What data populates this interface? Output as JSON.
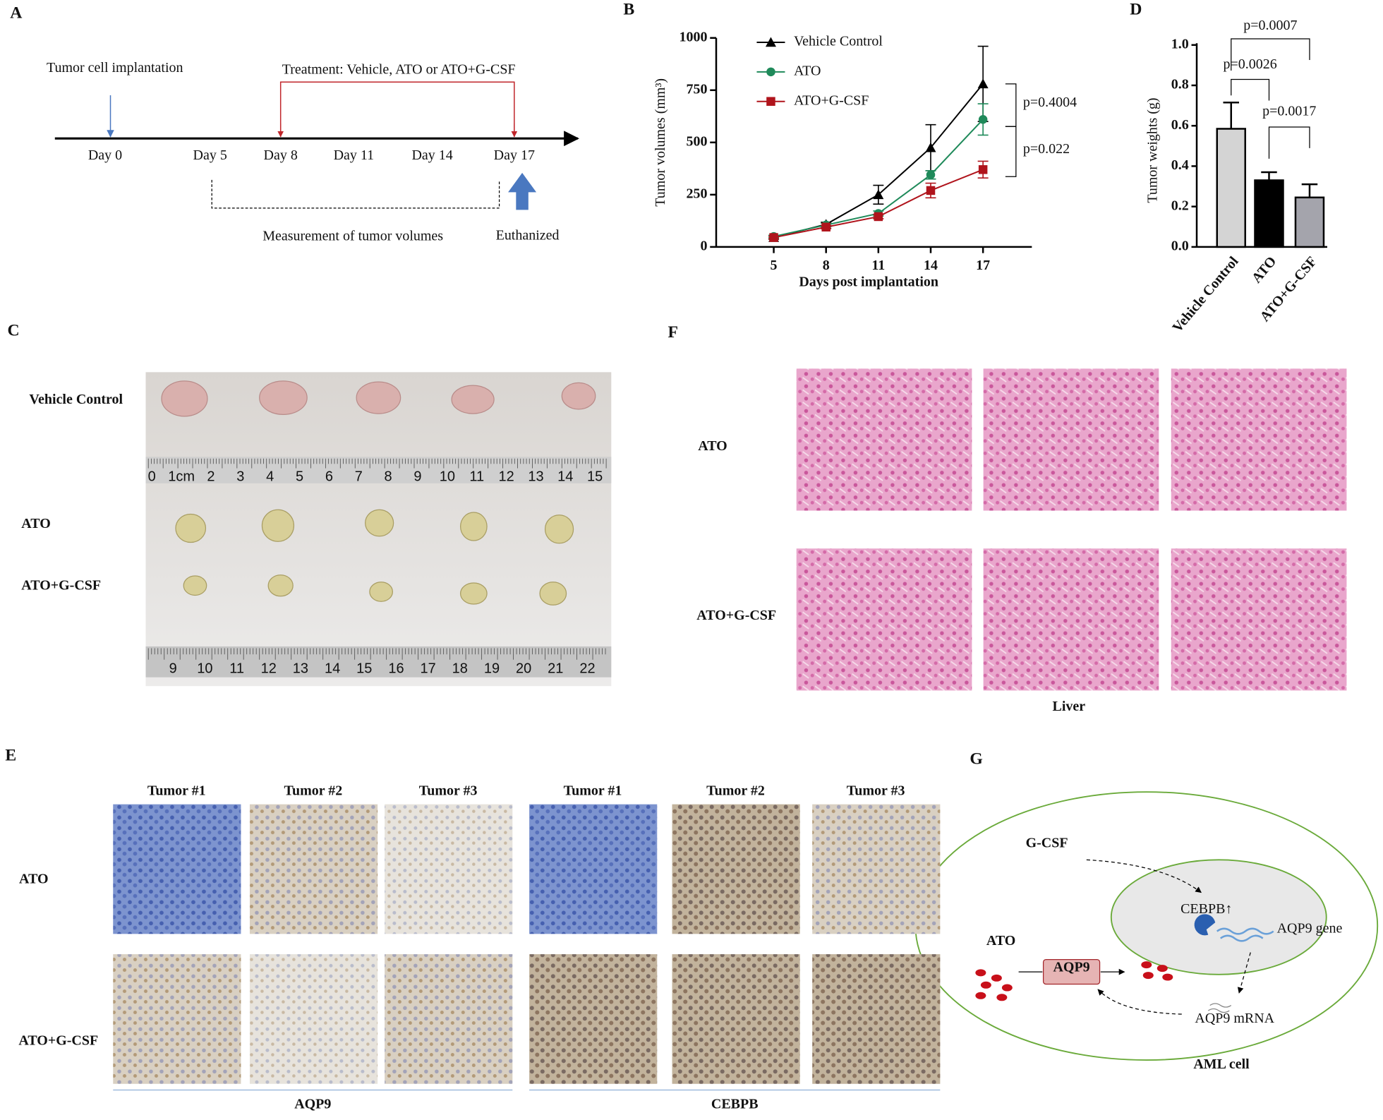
{
  "panel_labels": [
    "A",
    "B",
    "C",
    "D",
    "E",
    "F",
    "G"
  ],
  "panel_a": {
    "implantation": "Tumor cell implantation",
    "treatment": "Treatment: Vehicle, ATO or ATO+G-CSF",
    "days": [
      "Day 0",
      "Day 5",
      "Day 8",
      "Day 11",
      "Day 14",
      "Day 17"
    ],
    "measurement": "Measurement of tumor volumes",
    "euthanized": "Euthanized"
  },
  "chart_data": [
    {
      "type": "line",
      "xlabel": "Days post implantation",
      "ylabel": "Tumor volumes (mm³)",
      "x": [
        5,
        8,
        11,
        14,
        17
      ],
      "xlim": [
        1.7,
        19.8
      ],
      "xticks": [
        5,
        8,
        11,
        14,
        17
      ],
      "ylim": [
        0,
        1000
      ],
      "yticks": [
        0,
        250,
        500,
        750,
        1000
      ],
      "series": [
        {
          "name": "Vehicle Control",
          "color": "#000000",
          "marker": "triangle",
          "values": [
            45,
            108,
            250,
            475,
            780
          ],
          "errors": [
            8,
            10,
            45,
            110,
            180
          ]
        },
        {
          "name": "ATO",
          "color": "#1f8a5a",
          "marker": "circle",
          "values": [
            50,
            105,
            160,
            345,
            610
          ],
          "errors": [
            6,
            8,
            12,
            20,
            75
          ]
        },
        {
          "name": "ATO+G-CSF",
          "color": "#b0141c",
          "marker": "square",
          "values": [
            45,
            95,
            145,
            270,
            370
          ],
          "errors": [
            6,
            8,
            10,
            35,
            40
          ]
        }
      ],
      "annotations": [
        "p=0.4004",
        "p=0.022"
      ]
    },
    {
      "type": "bar",
      "ylabel": "Tumor weights (g)",
      "categories": [
        "Vehicle Control",
        "ATO",
        "ATO+G-CSF"
      ],
      "values": [
        0.585,
        0.33,
        0.245
      ],
      "errors": [
        0.13,
        0.04,
        0.065
      ],
      "colors": [
        "#d4d4d4",
        "#000000",
        "#a4a4ac"
      ],
      "ylim": [
        0,
        1.0
      ],
      "yticks": [
        {
          "value": 0,
          "label": "0.0"
        },
        0.2,
        0.4,
        0.6,
        0.8,
        {
          "value": 1.0,
          "label": "1.0"
        }
      ],
      "annotations": [
        "p=0.0007",
        "p=0.0026",
        "p=0.0017"
      ]
    }
  ],
  "panel_c": {
    "groups": [
      "Vehicle Control",
      "ATO",
      "ATO+G-CSF"
    ],
    "ruler_top": [
      "0",
      "1cm",
      "2",
      "3",
      "4",
      "5",
      "6",
      "7",
      "8",
      "9",
      "10",
      "11",
      "12",
      "13",
      "14",
      "15"
    ],
    "ruler_bottom": [
      "9",
      "10",
      "11",
      "12",
      "13",
      "14",
      "15",
      "16",
      "17",
      "18",
      "19",
      "20",
      "21",
      "22"
    ]
  },
  "panel_e": {
    "columns": [
      "Tumor #1",
      "Tumor #2",
      "Tumor #3"
    ],
    "rows": [
      "ATO",
      "ATO+G-CSF"
    ],
    "markers": [
      "AQP9",
      "CEBPB"
    ]
  },
  "panel_f": {
    "rows": [
      "ATO",
      "ATO+G-CSF"
    ],
    "tissue": "Liver"
  },
  "panel_g": {
    "gcsf": "G-CSF",
    "cebpb": "CEBPB↑",
    "gene": "AQP9 gene",
    "ato": "ATO",
    "aqp9": "AQP9",
    "mrna": "AQP9 mRNA",
    "cell": "AML cell"
  }
}
